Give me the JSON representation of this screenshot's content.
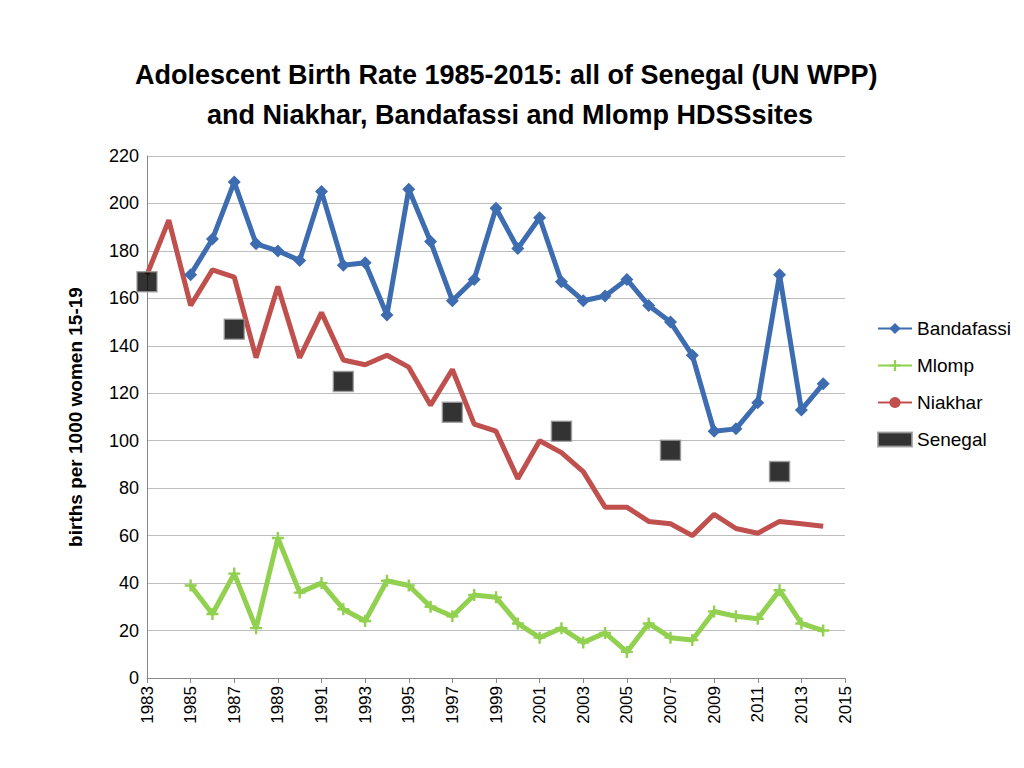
{
  "chart_data": {
    "type": "line",
    "title": "Adolescent Birth Rate 1985-2015: all of Senegal (UN WPP) and Niakhar, Bandafassi and Mlomp HDSSsites",
    "y_label": "births per 1000 women 15-19",
    "x": [
      1983,
      1984,
      1985,
      1986,
      1987,
      1988,
      1989,
      1990,
      1991,
      1992,
      1993,
      1994,
      1995,
      1996,
      1997,
      1998,
      1999,
      2000,
      2001,
      2002,
      2003,
      2004,
      2005,
      2006,
      2007,
      2008,
      2009,
      2010,
      2011,
      2012,
      2013,
      2014
    ],
    "xlim": [
      1983,
      2015
    ],
    "xticks": [
      1983,
      1985,
      1987,
      1989,
      1991,
      1993,
      1995,
      1997,
      1999,
      2001,
      2003,
      2005,
      2007,
      2009,
      2011,
      2013,
      2015
    ],
    "ylim": [
      0,
      220
    ],
    "yticks": [
      0,
      20,
      40,
      60,
      80,
      100,
      120,
      140,
      160,
      180,
      200,
      220
    ],
    "grid": true,
    "legend": "right",
    "series": [
      {
        "name": "Bandafassi",
        "color": "#3D6DB0",
        "type": "line",
        "marker": "diamond",
        "line_style": "solid",
        "values": [
          null,
          null,
          170,
          185,
          209,
          183,
          180,
          176,
          205,
          174,
          175,
          153,
          206,
          184,
          159,
          168,
          198,
          181,
          194,
          167,
          159,
          161,
          168,
          157,
          150,
          136,
          104,
          105,
          116,
          170,
          113,
          124
        ]
      },
      {
        "name": "Mlomp",
        "color": "#92D050",
        "type": "line",
        "marker": "plus",
        "line_style": "solid",
        "values": [
          null,
          null,
          39,
          27,
          44,
          21,
          59,
          36,
          40,
          29,
          24,
          41,
          39,
          30,
          26,
          35,
          34,
          23,
          17,
          21,
          15,
          19,
          11,
          23,
          17,
          16,
          28,
          26,
          25,
          37,
          23,
          20
        ]
      },
      {
        "name": "Niakhar",
        "color": "#C0504D",
        "type": "line",
        "marker": "none",
        "line_style": "solid",
        "values": [
          170,
          193,
          157,
          172,
          169,
          135,
          165,
          135,
          154,
          134,
          132,
          136,
          131,
          115,
          130,
          107,
          104,
          84,
          100,
          95,
          87,
          72,
          72,
          66,
          65,
          60,
          69,
          63,
          61,
          66,
          65,
          64
        ]
      },
      {
        "name": "Senegal",
        "color": "#000000",
        "type": "scatter",
        "marker": "square",
        "line_style": "none",
        "values": [
          167,
          null,
          null,
          null,
          147,
          null,
          null,
          null,
          null,
          125,
          null,
          null,
          null,
          null,
          112,
          null,
          null,
          null,
          null,
          104,
          null,
          null,
          null,
          null,
          96,
          null,
          null,
          null,
          null,
          87,
          null,
          null
        ]
      }
    ]
  }
}
